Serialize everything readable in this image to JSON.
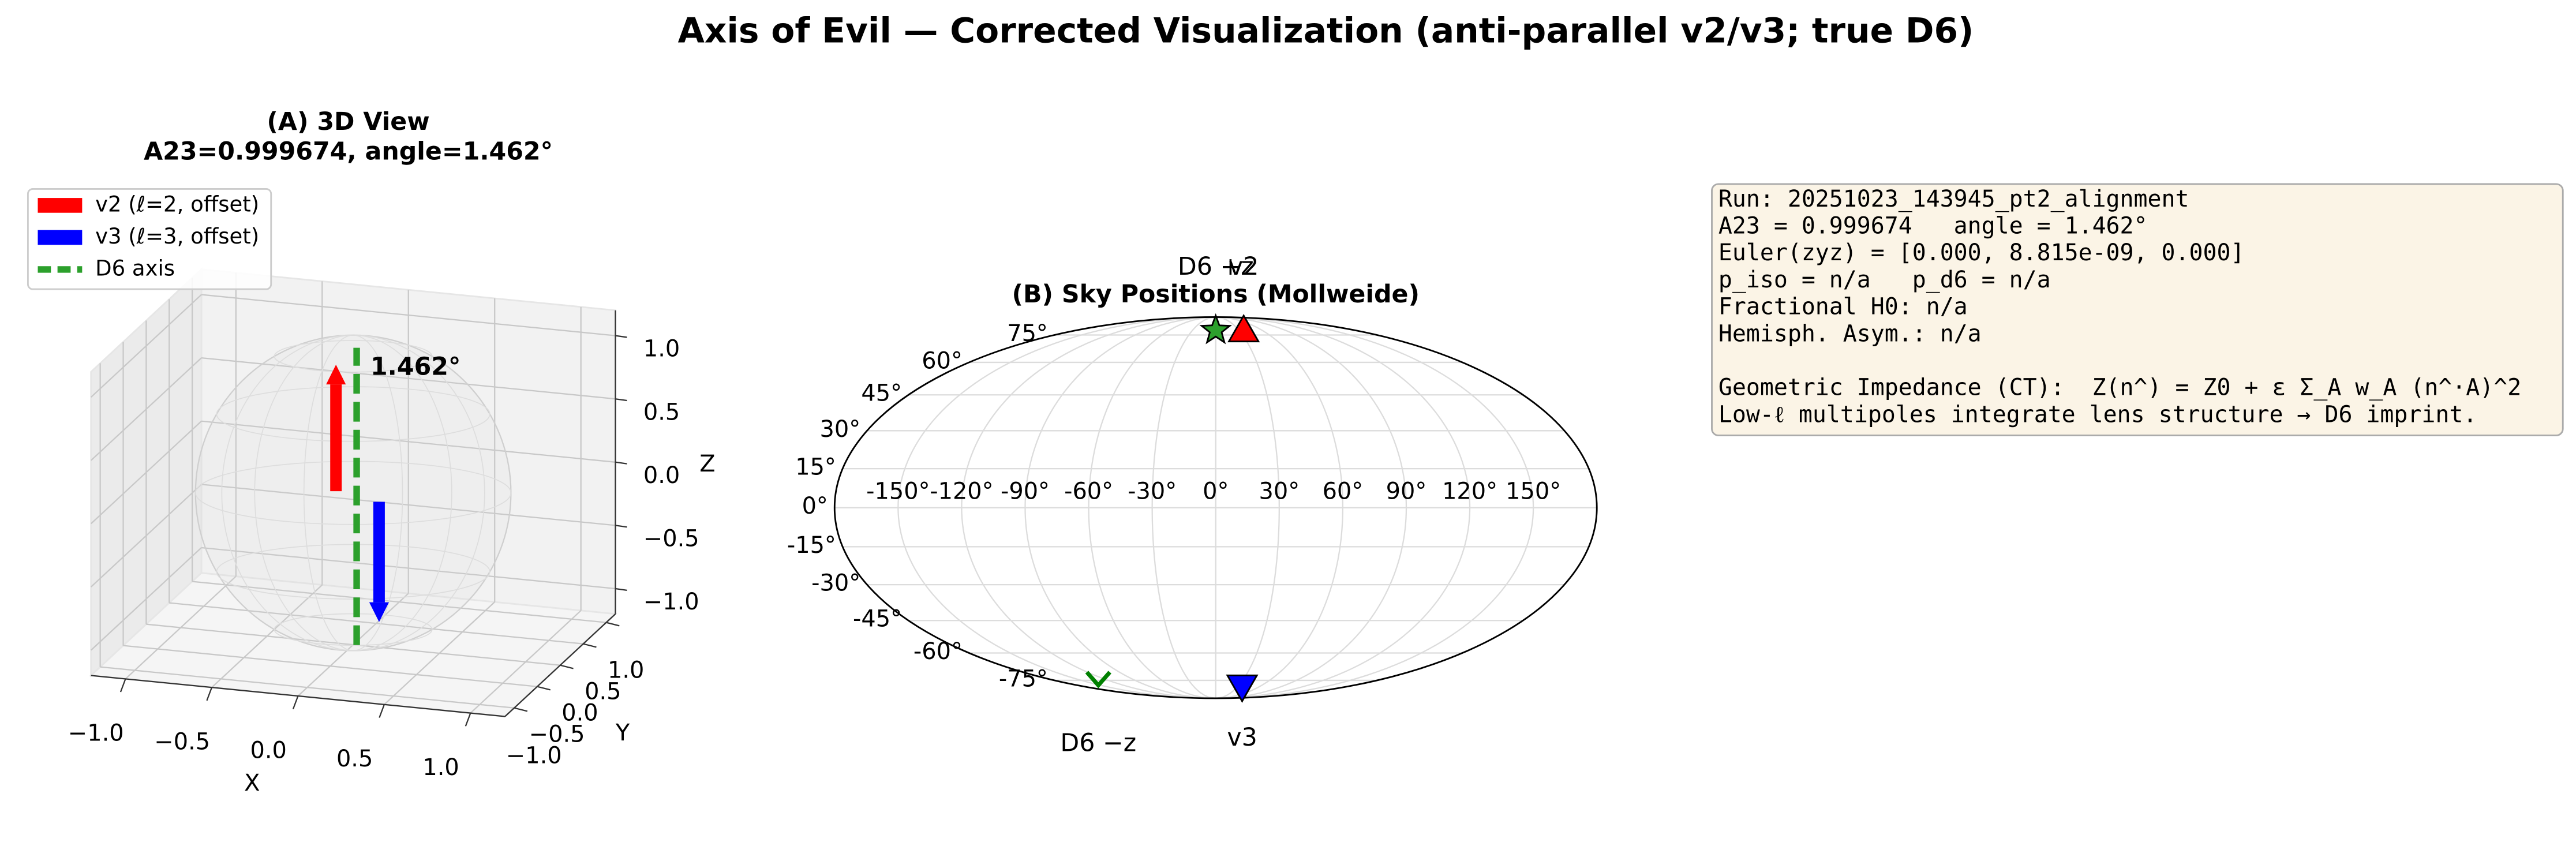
{
  "title": "Axis of Evil — Corrected Visualization (anti-parallel v2/v3; true D6)",
  "chart_data": [
    {
      "type": "quiver3d",
      "title": [
        "(A) 3D View",
        "A23=0.999674, angle=1.462°"
      ],
      "xlabel": "X",
      "ylabel": "Y",
      "zlabel": "Z",
      "xlim": [
        -1.2,
        1.2
      ],
      "ylim": [
        -1.2,
        1.2
      ],
      "zlim": [
        -1.2,
        1.2
      ],
      "xticks": [
        {
          "value": -1.0,
          "label": "−1.0"
        },
        {
          "value": -0.5,
          "label": "−0.5"
        },
        {
          "value": 0.0,
          "label": "0.0"
        },
        {
          "value": 0.5,
          "label": "0.5"
        },
        {
          "value": 1.0,
          "label": "1.0"
        }
      ],
      "yticks": [
        {
          "value": -1.0,
          "label": "−1.0"
        },
        {
          "value": -0.5,
          "label": "−0.5"
        },
        {
          "value": 0.0,
          "label": "0.0"
        },
        {
          "value": 0.5,
          "label": "0.5"
        },
        {
          "value": 1.0,
          "label": "1.0"
        }
      ],
      "zticks": [
        {
          "value": -1.0,
          "label": "−1.0"
        },
        {
          "value": -0.5,
          "label": "−0.5"
        },
        {
          "value": 0.0,
          "label": "0.0"
        },
        {
          "value": 0.5,
          "label": "0.5"
        },
        {
          "value": 1.0,
          "label": "1.0"
        }
      ],
      "grid": true,
      "legend": "upper left",
      "vectors": [
        {
          "name": "v2 (ℓ=2, offset)",
          "color": "#ff0000",
          "style": "arrow",
          "start": [
            -0.1,
            0,
            0
          ],
          "end": [
            -0.1,
            0,
            1.0
          ]
        },
        {
          "name": "v3 (ℓ=3, offset)",
          "color": "#0000ff",
          "style": "arrow",
          "start": [
            0.15,
            0,
            -0.05
          ],
          "end": [
            0.15,
            0,
            -1.0
          ]
        },
        {
          "name": "D6 axis",
          "color": "#2ca02c",
          "style": "dashed",
          "start": [
            0.02,
            0,
            -1.2
          ],
          "end": [
            0.02,
            0,
            1.15
          ]
        }
      ],
      "annotation": {
        "text": "1.462°",
        "color": "#ffa500",
        "position": [
          0.1,
          0,
          1.0
        ]
      }
    },
    {
      "type": "mollweide",
      "title": "(B) Sky Positions (Mollweide)",
      "xlim": [
        -180,
        180
      ],
      "ylim": [
        -90,
        90
      ],
      "xticks": [
        {
          "value": -150,
          "label": "-150°"
        },
        {
          "value": -120,
          "label": "-120°"
        },
        {
          "value": -90,
          "label": "-90°"
        },
        {
          "value": -60,
          "label": "-60°"
        },
        {
          "value": -30,
          "label": "-30°"
        },
        {
          "value": 0,
          "label": "0°"
        },
        {
          "value": 30,
          "label": "30°"
        },
        {
          "value": 60,
          "label": "60°"
        },
        {
          "value": 90,
          "label": "90°"
        },
        {
          "value": 120,
          "label": "120°"
        },
        {
          "value": 150,
          "label": "150°"
        }
      ],
      "yticks": [
        {
          "value": -75,
          "label": "-75°"
        },
        {
          "value": -60,
          "label": "-60°"
        },
        {
          "value": -45,
          "label": "-45°"
        },
        {
          "value": -30,
          "label": "-30°"
        },
        {
          "value": -15,
          "label": "-15°"
        },
        {
          "value": 0,
          "label": "0°"
        },
        {
          "value": 15,
          "label": "15°"
        },
        {
          "value": 30,
          "label": "30°"
        },
        {
          "value": 45,
          "label": "45°"
        },
        {
          "value": 60,
          "label": "60°"
        },
        {
          "value": 75,
          "label": "75°"
        }
      ],
      "grid": true,
      "series": [
        {
          "name": "D6 +z",
          "color": "#2ca02c",
          "marker": "star",
          "lon": 0,
          "lat": 78
        },
        {
          "name": "v2",
          "color": "#ff0000",
          "marker": "triangle-up",
          "lon": 36,
          "lat": 78
        },
        {
          "name": "v3",
          "color": "#0000ff",
          "marker": "triangle-down",
          "lon": 36,
          "lat": -79
        },
        {
          "name": "D6 −z",
          "color": "#008000",
          "marker": "x",
          "lon": -131,
          "lat": -75
        }
      ]
    }
  ],
  "info_box": {
    "lines": [
      "Run: 20251023_143945_pt2_alignment",
      "A23 = 0.999674   angle = 1.462°",
      "Euler(zyz) = [0.000, 8.815e-09, 0.000]",
      "p_iso = n/a   p_d6 = n/a",
      "Fractional H0: n/a",
      "Hemisph. Asym.: n/a"
    ],
    "notes": [
      "Geometric Impedance (CT):  Z(n^) = Z0 + ε Σ_A w_A (n^·A)^2",
      "Low-ℓ multipoles integrate lens structure → D6 imprint."
    ]
  }
}
